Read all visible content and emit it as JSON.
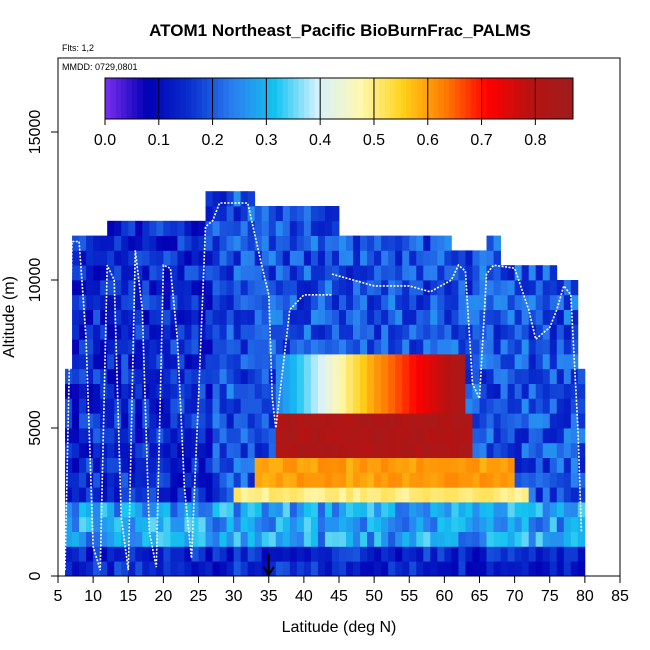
{
  "chart_data": {
    "type": "heatmap",
    "title": "ATOM1 Northeast_Pacific BioBurnFrac_PALMS",
    "flights_note": "Flts: 1,2",
    "date_note": "MMDD: 0729,0801",
    "xlabel": "Latitude (deg N)",
    "ylabel": "Altitude (m)",
    "xlim": [
      5,
      85
    ],
    "ylim": [
      0,
      17500
    ],
    "xticks": [
      5,
      10,
      15,
      20,
      25,
      30,
      35,
      40,
      45,
      50,
      55,
      60,
      65,
      70,
      75,
      80,
      85
    ],
    "xtick_labels": [
      "5",
      "10",
      "15",
      "20",
      "25",
      "30",
      "35",
      "40",
      "45",
      "50",
      "55",
      "60",
      "65",
      "70",
      "75",
      "80",
      "85"
    ],
    "yticks": [
      0,
      5000,
      10000,
      15000
    ],
    "ytick_labels": [
      "0",
      "5000",
      "10000",
      "15000"
    ],
    "colorbar": {
      "range": [
        0,
        0.87
      ],
      "ticks": [
        0.0,
        0.1,
        0.2,
        0.3,
        0.4,
        0.5,
        0.6,
        0.7,
        0.8
      ],
      "tick_labels": [
        "0.0",
        "0.1",
        "0.2",
        "0.3",
        "0.4",
        "0.5",
        "0.6",
        "0.7",
        "0.8"
      ],
      "colors": [
        "#7b2ff0",
        "#0000b5",
        "#0a2fcf",
        "#2a7ef0",
        "#14c3f0",
        "#d5f1ff",
        "#fff8b0",
        "#ffd21a",
        "#ff7a00",
        "#ff0000",
        "#b81212",
        "#9e1d1d"
      ]
    },
    "arrow_latitude": 35,
    "cell_size": {
      "lat_deg": 1,
      "alt_m": 500
    },
    "domain": {
      "lat_min": 6,
      "lat_max": 80,
      "alt_min": 0,
      "alt_max": 13000
    },
    "column_tops_m": [
      {
        "lat": 6,
        "top": 7000
      },
      {
        "lat": 7,
        "top": 11500
      },
      {
        "lat": 12,
        "top": 12000
      },
      {
        "lat": 26,
        "top": 13000
      },
      {
        "lat": 33,
        "top": 12500
      },
      {
        "lat": 45,
        "top": 11500
      },
      {
        "lat": 61,
        "top": 11000
      },
      {
        "lat": 66,
        "top": 11500
      },
      {
        "lat": 68,
        "top": 10500
      },
      {
        "lat": 76,
        "top": 10000
      },
      {
        "lat": 79,
        "top": 7000
      }
    ],
    "background_values": [
      {
        "lat_start": 6,
        "lat_end": 27,
        "value": 0.15
      },
      {
        "lat_start": 27,
        "lat_end": 80,
        "value": 0.2
      }
    ],
    "features": [
      {
        "name": "biomass burning plume core",
        "lat_range": [
          36,
          64
        ],
        "alt_range_m": [
          4000,
          5500
        ],
        "value": 0.82
      },
      {
        "name": "plume middle layer",
        "lat_range": [
          36,
          63
        ],
        "alt_range_m": [
          5500,
          7500
        ],
        "values_south_to_north": [
          0.25,
          0.6,
          0.85
        ]
      },
      {
        "name": "plume lower layer",
        "lat_range": [
          33,
          70
        ],
        "alt_range_m": [
          3000,
          4000
        ],
        "value": 0.6
      },
      {
        "name": "plume base",
        "lat_range": [
          30,
          72
        ],
        "alt_range_m": [
          2500,
          3000
        ],
        "value": 0.5
      }
    ],
    "flight_tracks": [
      {
        "name": "Flt 1 south",
        "points": [
          [
            6,
            200
          ],
          [
            7,
            11300
          ],
          [
            8,
            11300
          ],
          [
            9,
            8000
          ],
          [
            10,
            1000
          ],
          [
            11,
            200
          ],
          [
            12,
            10500
          ],
          [
            13,
            10000
          ],
          [
            14,
            2000
          ],
          [
            15,
            200
          ],
          [
            16,
            11000
          ],
          [
            17,
            9000
          ],
          [
            18,
            1500
          ],
          [
            19,
            300
          ],
          [
            20,
            10500
          ],
          [
            21,
            10400
          ],
          [
            22,
            8000
          ],
          [
            23,
            3000
          ],
          [
            24,
            600
          ],
          [
            25,
            6000
          ],
          [
            26,
            11800
          ],
          [
            27,
            12000
          ],
          [
            28,
            12600
          ],
          [
            32,
            12600
          ],
          [
            34,
            10500
          ],
          [
            35,
            9500
          ],
          [
            35.5,
            6000
          ],
          [
            36,
            5000
          ],
          [
            38,
            9000
          ],
          [
            40,
            9500
          ],
          [
            44,
            9500
          ]
        ]
      },
      {
        "name": "Flt 2 north",
        "points": [
          [
            44,
            10200
          ],
          [
            50,
            9800
          ],
          [
            55,
            9800
          ],
          [
            58,
            9600
          ],
          [
            61,
            10000
          ],
          [
            62,
            10500
          ],
          [
            63,
            10300
          ],
          [
            64,
            6500
          ],
          [
            65,
            6000
          ],
          [
            66,
            10200
          ],
          [
            67,
            10500
          ],
          [
            70,
            10400
          ],
          [
            72,
            9000
          ],
          [
            73,
            8000
          ],
          [
            74,
            8200
          ],
          [
            75,
            8400
          ],
          [
            76,
            9000
          ],
          [
            77,
            9800
          ],
          [
            78,
            9500
          ],
          [
            79,
            5000
          ],
          [
            79.5,
            1500
          ]
        ]
      }
    ]
  }
}
